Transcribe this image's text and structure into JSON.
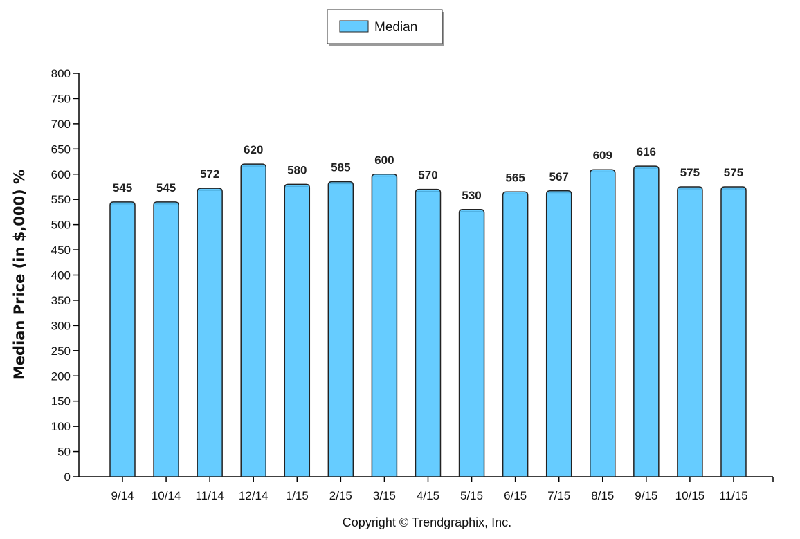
{
  "chart_data": {
    "type": "bar",
    "title": "",
    "xlabel": "",
    "ylabel": "Median Price (in $,000) %",
    "ylim": [
      0,
      800
    ],
    "ytick_step": 50,
    "grid": false,
    "legend": {
      "position": "top-center",
      "entries": [
        "Median"
      ]
    },
    "categories": [
      "9/14",
      "10/14",
      "11/14",
      "12/14",
      "1/15",
      "2/15",
      "3/15",
      "4/15",
      "5/15",
      "6/15",
      "7/15",
      "8/15",
      "9/15",
      "10/15",
      "11/15"
    ],
    "series": [
      {
        "name": "Median",
        "color": "#66ccff",
        "values": [
          545,
          545,
          572,
          620,
          580,
          585,
          600,
          570,
          530,
          565,
          567,
          609,
          616,
          575,
          575
        ]
      }
    ]
  },
  "footer": {
    "copyright": "Copyright © Trendgraphix, Inc."
  }
}
